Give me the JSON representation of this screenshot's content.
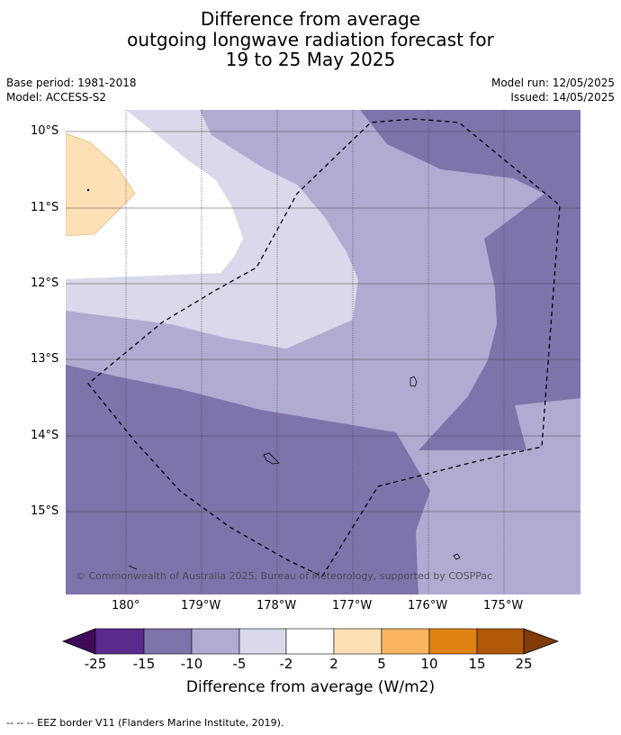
{
  "title": {
    "line1": "Difference from average",
    "line2": "outgoing longwave radiation forecast for",
    "line3": "19 to 25 May 2025"
  },
  "meta": {
    "base_period": "Base period: 1981-2018",
    "model": "Model: ACCESS-S2",
    "model_run": "Model run: 12/05/2025",
    "issued": "Issued: 14/05/2025"
  },
  "map": {
    "lat_labels": [
      "10°S",
      "11°S",
      "12°S",
      "13°S",
      "14°S",
      "15°S"
    ],
    "lon_labels": [
      "180°",
      "179°W",
      "178°W",
      "177°W",
      "176°W",
      "175°W"
    ],
    "copyright": "© Commonwealth of Australia 2025, Bureau of Meteorology, supported by COSPPac",
    "colors": {
      "minus15_to_minus10": "#7f73ab",
      "minus10_to_minus5": "#b1abd2",
      "minus5_to_minus2": "#d9d9eb",
      "minus2_to_2": "#ffffff",
      "2_to_5": "#fde0b6"
    }
  },
  "colorbar": {
    "labels": [
      "-25",
      "-15",
      "-10",
      "-5",
      "-2",
      "2",
      "5",
      "10",
      "15",
      "25"
    ],
    "colors": [
      "#3f0a5a",
      "#5a2a8d",
      "#7f73ab",
      "#b1abd2",
      "#d9d9eb",
      "#ffffff",
      "#fde0b6",
      "#fbb561",
      "#e08314",
      "#b05806",
      "#7f3b08"
    ],
    "title": "Difference from average (W/m2)"
  },
  "footer": "--  --  -- EEZ border V11 (Flanders Marine Institute, 2019)."
}
